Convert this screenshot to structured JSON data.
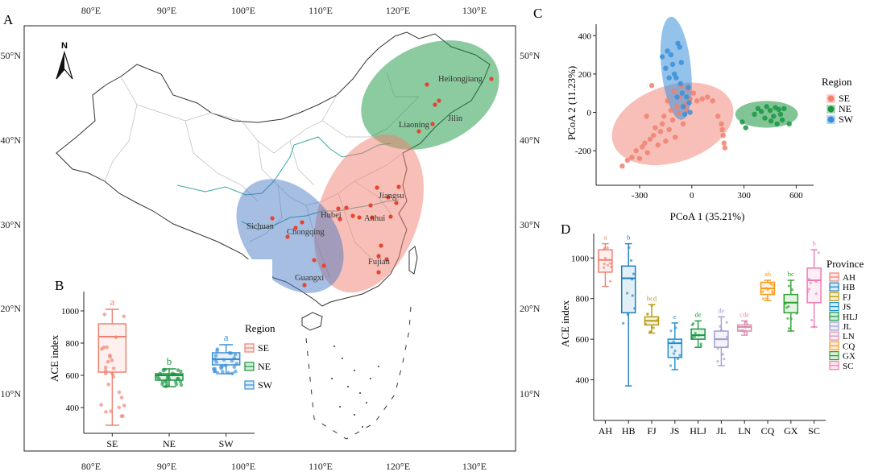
{
  "figure": {
    "panel_labels": [
      "A",
      "B",
      "C",
      "D"
    ],
    "colors": {
      "SE": "#f08070",
      "NE": "#1a9641",
      "SW": "#3a8fd9",
      "AH": "#f08070",
      "HB": "#1a7fbf",
      "FJ": "#b59a10",
      "JS": "#1f8ed3",
      "HLJ": "#1a9641",
      "JL": "#a29bd3",
      "LN": "#d68fb0",
      "CQ": "#f59a1a",
      "GX": "#2ca02c",
      "SC": "#f07ab0",
      "sampling_point": "#e8432e"
    }
  },
  "map": {
    "lon_ticks": [
      "80°E",
      "90°E",
      "100°E",
      "110°E",
      "120°E",
      "130°E"
    ],
    "lat_ticks": [
      "50°N",
      "40°N",
      "30°N",
      "20°N",
      "10°N"
    ],
    "north_label": "N",
    "places": [
      "Heilongjiang",
      "Jilin",
      "Liaoning",
      "Jiangsu",
      "Anhui",
      "Hubei",
      "Sichuan",
      "Chongqing",
      "Fujian",
      "Guangxi"
    ]
  },
  "chart_data": [
    {
      "id": "B",
      "type": "box",
      "ylabel": "ACE index",
      "categories": [
        "SE",
        "NE",
        "SW"
      ],
      "yticks": [
        400,
        600,
        800,
        1000
      ],
      "ylim": [
        240,
        1120
      ],
      "legend_title": "Region",
      "legend": [
        "SE",
        "NE",
        "SW"
      ],
      "boxes": [
        {
          "name": "SE",
          "min": 290,
          "q1": 620,
          "median": 840,
          "q3": 920,
          "max": 1010,
          "letter": "a"
        },
        {
          "name": "NE",
          "min": 530,
          "q1": 570,
          "median": 600,
          "q3": 610,
          "max": 640,
          "letter": "b"
        },
        {
          "name": "SW",
          "min": 610,
          "q1": 665,
          "median": 700,
          "q3": 740,
          "max": 790,
          "letter": "a"
        }
      ]
    },
    {
      "id": "C",
      "type": "scatter",
      "xlabel": "PCoA 1 (35.21%)",
      "ylabel": "PCoA 2 (11.23%)",
      "xticks": [
        -300,
        0,
        300,
        600
      ],
      "yticks": [
        -200,
        0,
        200,
        400
      ],
      "xlim": [
        -550,
        700
      ],
      "ylim": [
        -380,
        460
      ],
      "legend_title": "Region",
      "legend": [
        "SE",
        "NE",
        "SW"
      ],
      "series": [
        {
          "name": "SE",
          "points": [
            [
              -400,
              -280
            ],
            [
              -370,
              -250
            ],
            [
              -345,
              -235
            ],
            [
              -320,
              -200
            ],
            [
              -300,
              -240
            ],
            [
              -285,
              -180
            ],
            [
              -270,
              -160
            ],
            [
              -255,
              -210
            ],
            [
              -240,
              -140
            ],
            [
              -220,
              -120
            ],
            [
              -210,
              -80
            ],
            [
              -195,
              -170
            ],
            [
              -180,
              -100
            ],
            [
              -170,
              -60
            ],
            [
              -160,
              -20
            ],
            [
              -150,
              -150
            ],
            [
              -140,
              60
            ],
            [
              -130,
              -90
            ],
            [
              -120,
              10
            ],
            [
              -110,
              -40
            ],
            [
              -100,
              110
            ],
            [
              -95,
              -130
            ],
            [
              -85,
              30
            ],
            [
              -75,
              -5
            ],
            [
              -70,
              80
            ],
            [
              -60,
              140
            ],
            [
              -50,
              -60
            ],
            [
              -40,
              40
            ],
            [
              -30,
              10
            ],
            [
              -20,
              120
            ],
            [
              -10,
              70
            ],
            [
              10,
              100
            ],
            [
              30,
              60
            ],
            [
              60,
              70
            ],
            [
              90,
              80
            ],
            [
              120,
              60
            ],
            [
              150,
              -20
            ],
            [
              170,
              -60
            ],
            [
              180,
              -120
            ],
            [
              185,
              -160
            ],
            [
              190,
              -185
            ],
            [
              175,
              -90
            ],
            [
              -230,
              140
            ],
            [
              -260,
              -20
            ]
          ]
        },
        {
          "name": "NE",
          "points": [
            [
              290,
              -50
            ],
            [
              310,
              -80
            ],
            [
              360,
              -10
            ],
            [
              380,
              20
            ],
            [
              400,
              5
            ],
            [
              420,
              -30
            ],
            [
              430,
              30
            ],
            [
              450,
              10
            ],
            [
              455,
              -45
            ],
            [
              470,
              -20
            ],
            [
              480,
              25
            ],
            [
              490,
              -60
            ],
            [
              500,
              15
            ],
            [
              510,
              -10
            ],
            [
              520,
              -40
            ],
            [
              530,
              20
            ],
            [
              560,
              -60
            ]
          ]
        },
        {
          "name": "SW",
          "points": [
            [
              -170,
              290
            ],
            [
              -150,
              230
            ],
            [
              -140,
              320
            ],
            [
              -120,
              300
            ],
            [
              -110,
              250
            ],
            [
              -100,
              200
            ],
            [
              -90,
              180
            ],
            [
              -80,
              360
            ],
            [
              -70,
              340
            ],
            [
              -65,
              150
            ],
            [
              -55,
              100
            ],
            [
              -50,
              30
            ],
            [
              -40,
              -10
            ],
            [
              -30,
              80
            ],
            [
              -20,
              130
            ],
            [
              -15,
              50
            ],
            [
              -10,
              0
            ],
            [
              -60,
              260
            ],
            [
              -130,
              180
            ],
            [
              -85,
              80
            ]
          ]
        }
      ],
      "ellipses": [
        {
          "name": "SE",
          "cx": -110,
          "cy": -60,
          "rx": 360,
          "ry": 200
        },
        {
          "name": "NE",
          "cx": 430,
          "cy": -10,
          "rx": 180,
          "ry": 70
        },
        {
          "name": "SW",
          "cx": -90,
          "cy": 230,
          "rx": 85,
          "ry": 270
        }
      ]
    },
    {
      "id": "D",
      "type": "box",
      "ylabel": "ACE index",
      "categories": [
        "AH",
        "HB",
        "FJ",
        "JS",
        "HLJ",
        "JL",
        "LN",
        "CQ",
        "GX",
        "SC"
      ],
      "yticks": [
        400,
        600,
        800,
        1000
      ],
      "ylim": [
        200,
        1120
      ],
      "legend_title": "Province",
      "legend": [
        "AH",
        "HB",
        "FJ",
        "JS",
        "HLJ",
        "JL",
        "LN",
        "CQ",
        "GX",
        "SC"
      ],
      "boxes": [
        {
          "name": "AH",
          "min": 860,
          "q1": 930,
          "median": 990,
          "q3": 1040,
          "max": 1070,
          "letter": "a"
        },
        {
          "name": "HB",
          "min": 370,
          "q1": 730,
          "median": 900,
          "q3": 960,
          "max": 1070,
          "letter": "b"
        },
        {
          "name": "FJ",
          "min": 630,
          "q1": 670,
          "median": 690,
          "q3": 710,
          "max": 770,
          "letter": "bcd"
        },
        {
          "name": "JS",
          "min": 450,
          "q1": 510,
          "median": 580,
          "q3": 600,
          "max": 680,
          "letter": "e"
        },
        {
          "name": "HLJ",
          "min": 560,
          "q1": 600,
          "median": 620,
          "q3": 650,
          "max": 690,
          "letter": "de"
        },
        {
          "name": "JL",
          "min": 470,
          "q1": 560,
          "median": 600,
          "q3": 640,
          "max": 710,
          "letter": "de"
        },
        {
          "name": "LN",
          "min": 620,
          "q1": 640,
          "median": 660,
          "q3": 670,
          "max": 690,
          "letter": "cde"
        },
        {
          "name": "CQ",
          "min": 790,
          "q1": 820,
          "median": 850,
          "q3": 880,
          "max": 890,
          "letter": "ab"
        },
        {
          "name": "GX",
          "min": 640,
          "q1": 730,
          "median": 780,
          "q3": 820,
          "max": 890,
          "letter": "bc"
        },
        {
          "name": "SC",
          "min": 660,
          "q1": 780,
          "median": 890,
          "q3": 950,
          "max": 1040,
          "letter": "b"
        }
      ]
    }
  ]
}
